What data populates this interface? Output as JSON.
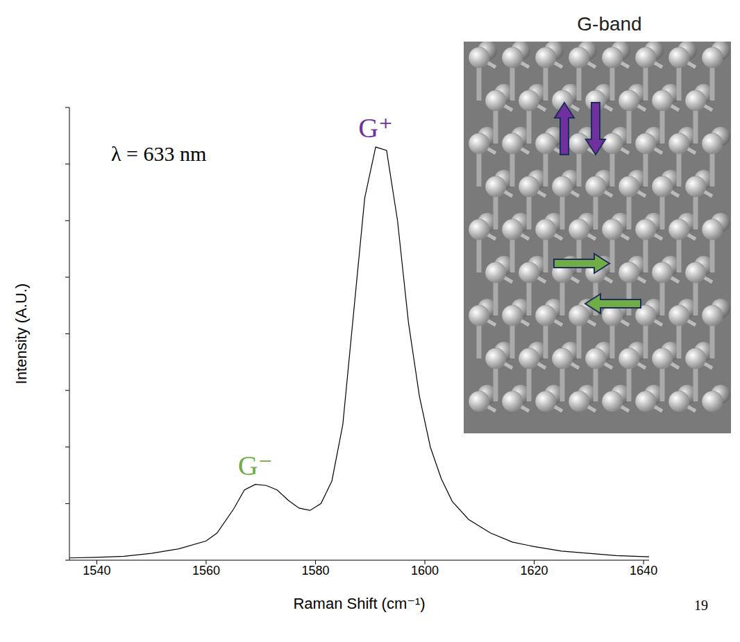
{
  "chart_data": {
    "type": "line",
    "x_label": "Raman Shift (cm⁻¹)",
    "y_label": "Intensity (A.U.)",
    "x": [
      1535,
      1540,
      1545,
      1550,
      1555,
      1560,
      1562,
      1565,
      1567,
      1569,
      1571,
      1573,
      1575,
      1577,
      1579,
      1581,
      1583,
      1585,
      1587,
      1589,
      1591,
      1593,
      1595,
      1597,
      1599,
      1601,
      1603,
      1605,
      1608,
      1612,
      1616,
      1620,
      1625,
      1630,
      1635,
      1641
    ],
    "values": [
      0.02,
      0.025,
      0.035,
      0.06,
      0.1,
      0.17,
      0.24,
      0.45,
      0.62,
      0.67,
      0.66,
      0.62,
      0.53,
      0.46,
      0.44,
      0.5,
      0.7,
      1.2,
      2.2,
      3.2,
      3.65,
      3.62,
      3.0,
      2.1,
      1.45,
      1.0,
      0.72,
      0.52,
      0.36,
      0.24,
      0.16,
      0.12,
      0.08,
      0.06,
      0.04,
      0.03
    ],
    "color": "#000000",
    "xlim": [
      1535,
      1641
    ],
    "xticks": [
      1540,
      1560,
      1580,
      1600,
      1620,
      1640
    ],
    "ylim": [
      0,
      4
    ],
    "yticks": [
      0,
      0.5,
      1,
      1.5,
      2,
      2.5,
      3,
      3.5,
      4
    ],
    "tick_labels": "x",
    "grid": false,
    "annotations": [
      "λ = 633 nm"
    ],
    "peak_labels": [
      {
        "text": "G⁺",
        "color": "#7030a0"
      },
      {
        "text": "G⁻",
        "color": "#70ad47"
      }
    ]
  },
  "inset": {
    "title": "G-band"
  },
  "page_number": "19"
}
